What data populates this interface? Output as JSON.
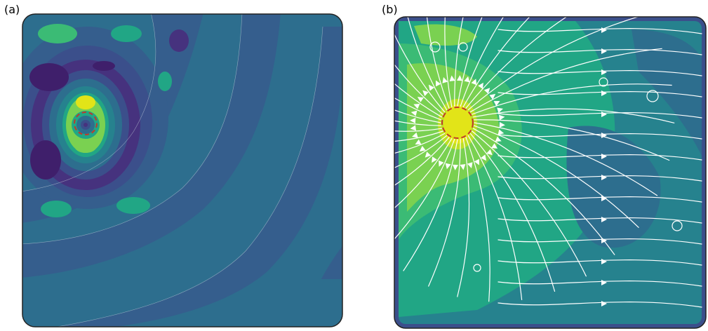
{
  "panels": [
    {
      "id": "a",
      "label": "(a)"
    },
    {
      "id": "b",
      "label": "(b)"
    }
  ],
  "colormap": {
    "darkest": "#3f1f6b",
    "dark_purple": "#46327e",
    "indigo": "#3b4f8b",
    "steel_blue": "#355e8d",
    "blue_teal": "#2d6e8e",
    "teal": "#26828e",
    "sea_green": "#21a685",
    "green": "#3bbb75",
    "light_green": "#7ad151",
    "yellow_green": "#bddf26",
    "yellow": "#e2e418"
  },
  "accents": {
    "source_circle": "#c0392b",
    "streamlines": "#ffffff",
    "frame": "#222222"
  }
}
